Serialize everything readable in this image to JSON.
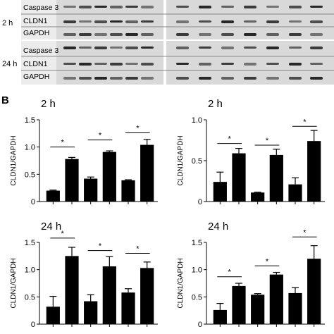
{
  "blot": {
    "groups": [
      {
        "time": "2 h",
        "bands": [
          "Caspase 3",
          "CLDN1",
          "GAPDH"
        ]
      },
      {
        "time": "24 h",
        "bands": [
          "Caspase 3",
          "CLDN1",
          "GAPDH"
        ]
      }
    ]
  },
  "panel_label": "B",
  "significance_mark": "*",
  "chart_data": [
    {
      "type": "bar",
      "title": "2 h",
      "ylabel": "CLDN1/GAPDH",
      "xlabel": "",
      "ylim": [
        0,
        1.5
      ],
      "yticks": [
        "0",
        "0.5",
        "1.0",
        "1.5"
      ],
      "values": [
        0.2,
        0.78,
        0.42,
        0.91,
        0.39,
        1.04
      ],
      "errors": [
        0.01,
        0.03,
        0.03,
        0.02,
        0.01,
        0.1
      ],
      "significance": [
        [
          0,
          1,
          1.0
        ],
        [
          2,
          3,
          1.13
        ],
        [
          4,
          5,
          1.26
        ]
      ]
    },
    {
      "type": "bar",
      "title": "2 h",
      "ylabel": "CLDN1/GAPDH",
      "xlabel": "",
      "ylim": [
        0,
        1.0
      ],
      "yticks": [
        "0",
        "0.5",
        "1.0"
      ],
      "values": [
        0.24,
        0.59,
        0.11,
        0.57,
        0.21,
        0.74
      ],
      "errors": [
        0.12,
        0.06,
        0.005,
        0.07,
        0.08,
        0.13
      ],
      "significance": [
        [
          0,
          1,
          0.71
        ],
        [
          2,
          3,
          0.69
        ],
        [
          4,
          5,
          0.92
        ]
      ]
    },
    {
      "type": "bar",
      "title": "24 h",
      "ylabel": "CLDN1/GAPDH",
      "xlabel": "",
      "ylim": [
        0,
        1.5
      ],
      "yticks": [
        "0",
        "0.5",
        "1.0",
        "1.5"
      ],
      "values": [
        0.32,
        1.25,
        0.42,
        1.06,
        0.58,
        1.03
      ],
      "errors": [
        0.19,
        0.16,
        0.12,
        0.18,
        0.07,
        0.11
      ],
      "significance": [
        [
          0,
          1,
          1.58
        ],
        [
          2,
          3,
          1.35
        ],
        [
          4,
          5,
          1.3
        ]
      ]
    },
    {
      "type": "bar",
      "title": "24 h",
      "ylabel": "CLDN1/GAPDH",
      "xlabel": "",
      "ylim": [
        0,
        1.5
      ],
      "yticks": [
        "0",
        "0.5",
        "1.0",
        "1.5"
      ],
      "values": [
        0.26,
        0.7,
        0.54,
        0.91,
        0.57,
        1.2
      ],
      "errors": [
        0.12,
        0.05,
        0.02,
        0.04,
        0.1,
        0.24
      ],
      "significance": [
        [
          0,
          1,
          0.87
        ],
        [
          2,
          3,
          1.07
        ],
        [
          4,
          5,
          1.6
        ]
      ]
    }
  ]
}
